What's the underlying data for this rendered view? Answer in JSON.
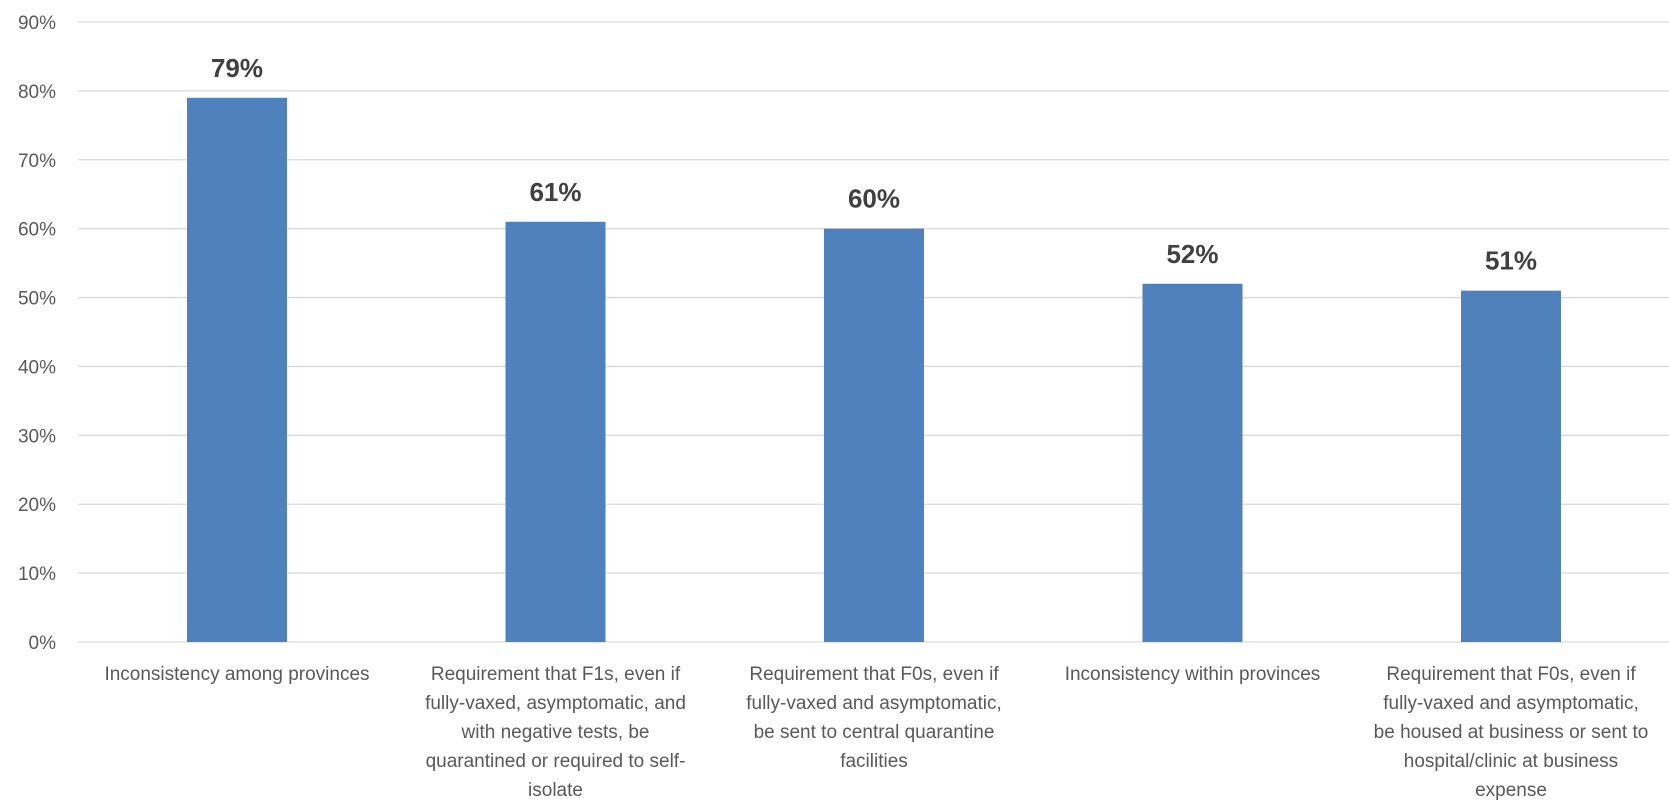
{
  "chart_data": {
    "type": "bar",
    "categories": [
      [
        "Inconsistency among provinces"
      ],
      [
        "Requirement that F1s, even if",
        "fully-vaxed, asymptomatic, and",
        "with negative tests, be",
        "quarantined or required to self-",
        "isolate"
      ],
      [
        "Requirement that F0s, even if",
        "fully-vaxed and asymptomatic,",
        "be sent to central quarantine",
        "facilities"
      ],
      [
        "Inconsistency within provinces"
      ],
      [
        "Requirement that F0s, even if",
        "fully-vaxed and asymptomatic,",
        "be housed at business or sent to",
        "hospital/clinic at business",
        "expense"
      ]
    ],
    "values": [
      79,
      61,
      60,
      52,
      51
    ],
    "data_labels": [
      "79%",
      "61%",
      "60%",
      "52%",
      "51%"
    ],
    "ylim": [
      0,
      90
    ],
    "yticks": [
      0,
      10,
      20,
      30,
      40,
      50,
      60,
      70,
      80,
      90
    ],
    "ytick_labels": [
      "0%",
      "10%",
      "20%",
      "30%",
      "40%",
      "50%",
      "60%",
      "70%",
      "80%",
      "90%"
    ],
    "grid": true,
    "bar_color": "#4f81bd",
    "title": "",
    "xlabel": "",
    "ylabel": ""
  }
}
